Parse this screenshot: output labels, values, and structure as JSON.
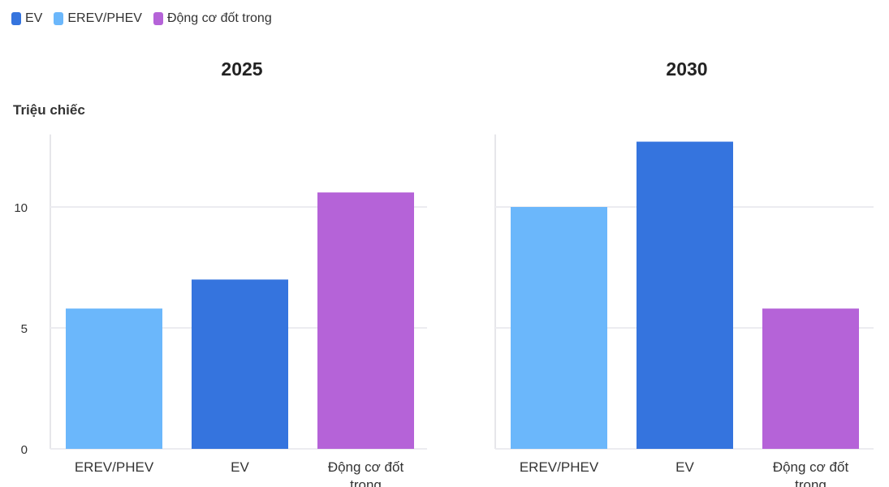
{
  "legend": [
    {
      "name": "EV",
      "color": "#3574de"
    },
    {
      "name": "EREV/PHEV",
      "color": "#6bb7fb"
    },
    {
      "name": "Động cơ đốt trong",
      "color": "#b563d8"
    }
  ],
  "y_axis_title": "Triệu chiếc",
  "chart_data": [
    {
      "type": "bar",
      "title": "2025",
      "ylabel": "Triệu chiếc",
      "ylim": [
        0,
        13
      ],
      "yticks": [
        0,
        5,
        10
      ],
      "grid": true,
      "legend_placement": "top-left",
      "categories": [
        "EREV/PHEV",
        "EV",
        "Động cơ đốt trong"
      ],
      "values": [
        5.8,
        7.0,
        10.6
      ],
      "colors": [
        "#6bb7fb",
        "#3574de",
        "#b563d8"
      ]
    },
    {
      "type": "bar",
      "title": "2030",
      "ylabel": "",
      "ylim": [
        0,
        13
      ],
      "yticks": [
        0,
        5,
        10
      ],
      "grid": true,
      "legend_placement": "top-left",
      "categories": [
        "EREV/PHEV",
        "EV",
        "Động cơ đốt trong"
      ],
      "values": [
        10.0,
        12.7,
        5.8
      ],
      "colors": [
        "#6bb7fb",
        "#3574de",
        "#b563d8"
      ]
    }
  ]
}
